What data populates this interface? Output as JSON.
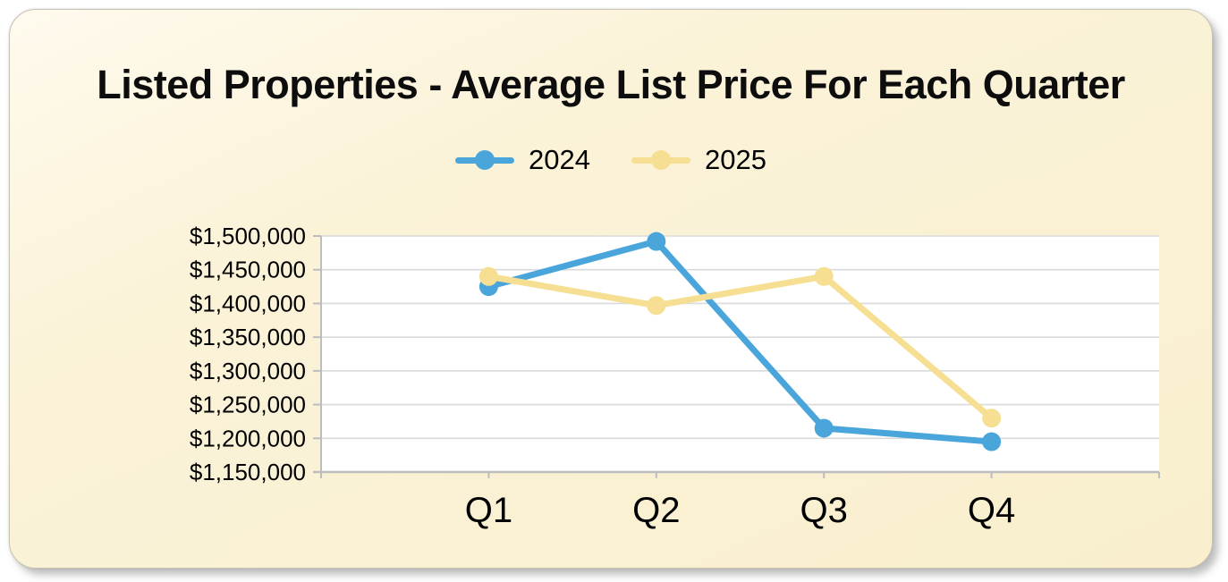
{
  "card": {
    "background_start": "#FEFAEE",
    "background_end": "#F9EFCE",
    "border_color": "#C9C3B2"
  },
  "chart_data": {
    "type": "line",
    "title": "Listed Properties - Average List Price For Each Quarter",
    "categories": [
      "Q1",
      "Q2",
      "Q3",
      "Q4"
    ],
    "series": [
      {
        "name": "2024",
        "color": "#4AA5DB",
        "values": [
          1425000,
          1492000,
          1215000,
          1195000
        ]
      },
      {
        "name": "2025",
        "color": "#F6DF92",
        "values": [
          1440000,
          1397000,
          1440000,
          1230000
        ]
      }
    ],
    "ylim": [
      1150000,
      1500000
    ],
    "y_tick_step": 50000,
    "y_tick_labels": [
      "$1,500,000",
      "$1,450,000",
      "$1,400,000",
      "$1,350,000",
      "$1,300,000",
      "$1,250,000",
      "$1,200,000",
      "$1,150,000"
    ],
    "xlabel": "",
    "ylabel": "",
    "grid": "horizontal",
    "legend_position": "top-center",
    "plot_background": "#FFFFFF",
    "gridline_color": "#DADADA",
    "axis_color": "#BDBDBD",
    "label_color": "#000000"
  }
}
